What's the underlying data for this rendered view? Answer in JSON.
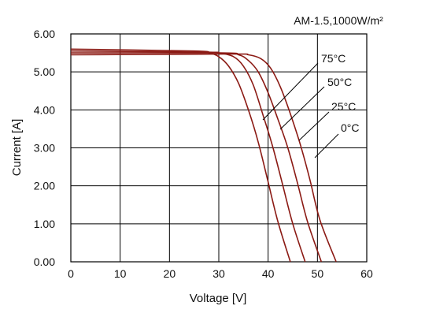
{
  "chart_data": {
    "type": "line",
    "annotation": "AM-1.5,1000W/m²",
    "xlabel": "Voltage [V]",
    "ylabel": "Current [A]",
    "xlim": [
      0,
      60
    ],
    "ylim": [
      0,
      6
    ],
    "x_ticks": [
      "0",
      "10",
      "20",
      "30",
      "40",
      "50",
      "60"
    ],
    "y_ticks": [
      "0.00",
      "1.00",
      "2.00",
      "3.00",
      "4.00",
      "5.00",
      "6.00"
    ],
    "grid": true,
    "curve_color": "#8b1a14",
    "series": [
      {
        "name": "75°C",
        "x": [
          0,
          25,
          28,
          30,
          32,
          34,
          36,
          38,
          40,
          42,
          44.5
        ],
        "y": [
          5.6,
          5.55,
          5.5,
          5.4,
          5.15,
          4.7,
          4.0,
          3.15,
          2.1,
          1.05,
          0
        ]
      },
      {
        "name": "50°C",
        "x": [
          0,
          27,
          30,
          33,
          35,
          37,
          39,
          41,
          43,
          45,
          47.5
        ],
        "y": [
          5.55,
          5.52,
          5.5,
          5.4,
          5.15,
          4.65,
          3.85,
          3.0,
          2.0,
          1.0,
          0
        ]
      },
      {
        "name": "25°C",
        "x": [
          0,
          30,
          34,
          36,
          38,
          40,
          42,
          44,
          46,
          48,
          50.8
        ],
        "y": [
          5.5,
          5.5,
          5.45,
          5.3,
          5.0,
          4.45,
          3.75,
          3.0,
          2.05,
          1.05,
          0
        ]
      },
      {
        "name": "0°C",
        "x": [
          0,
          32,
          36,
          38.5,
          40.5,
          42.5,
          44.5,
          46.5,
          48.5,
          50.5,
          53.8
        ],
        "y": [
          5.45,
          5.47,
          5.45,
          5.35,
          5.1,
          4.6,
          3.9,
          3.1,
          2.15,
          1.1,
          0
        ]
      }
    ],
    "labels": [
      "75°C",
      "50°C",
      "25°C",
      "0°C"
    ]
  }
}
